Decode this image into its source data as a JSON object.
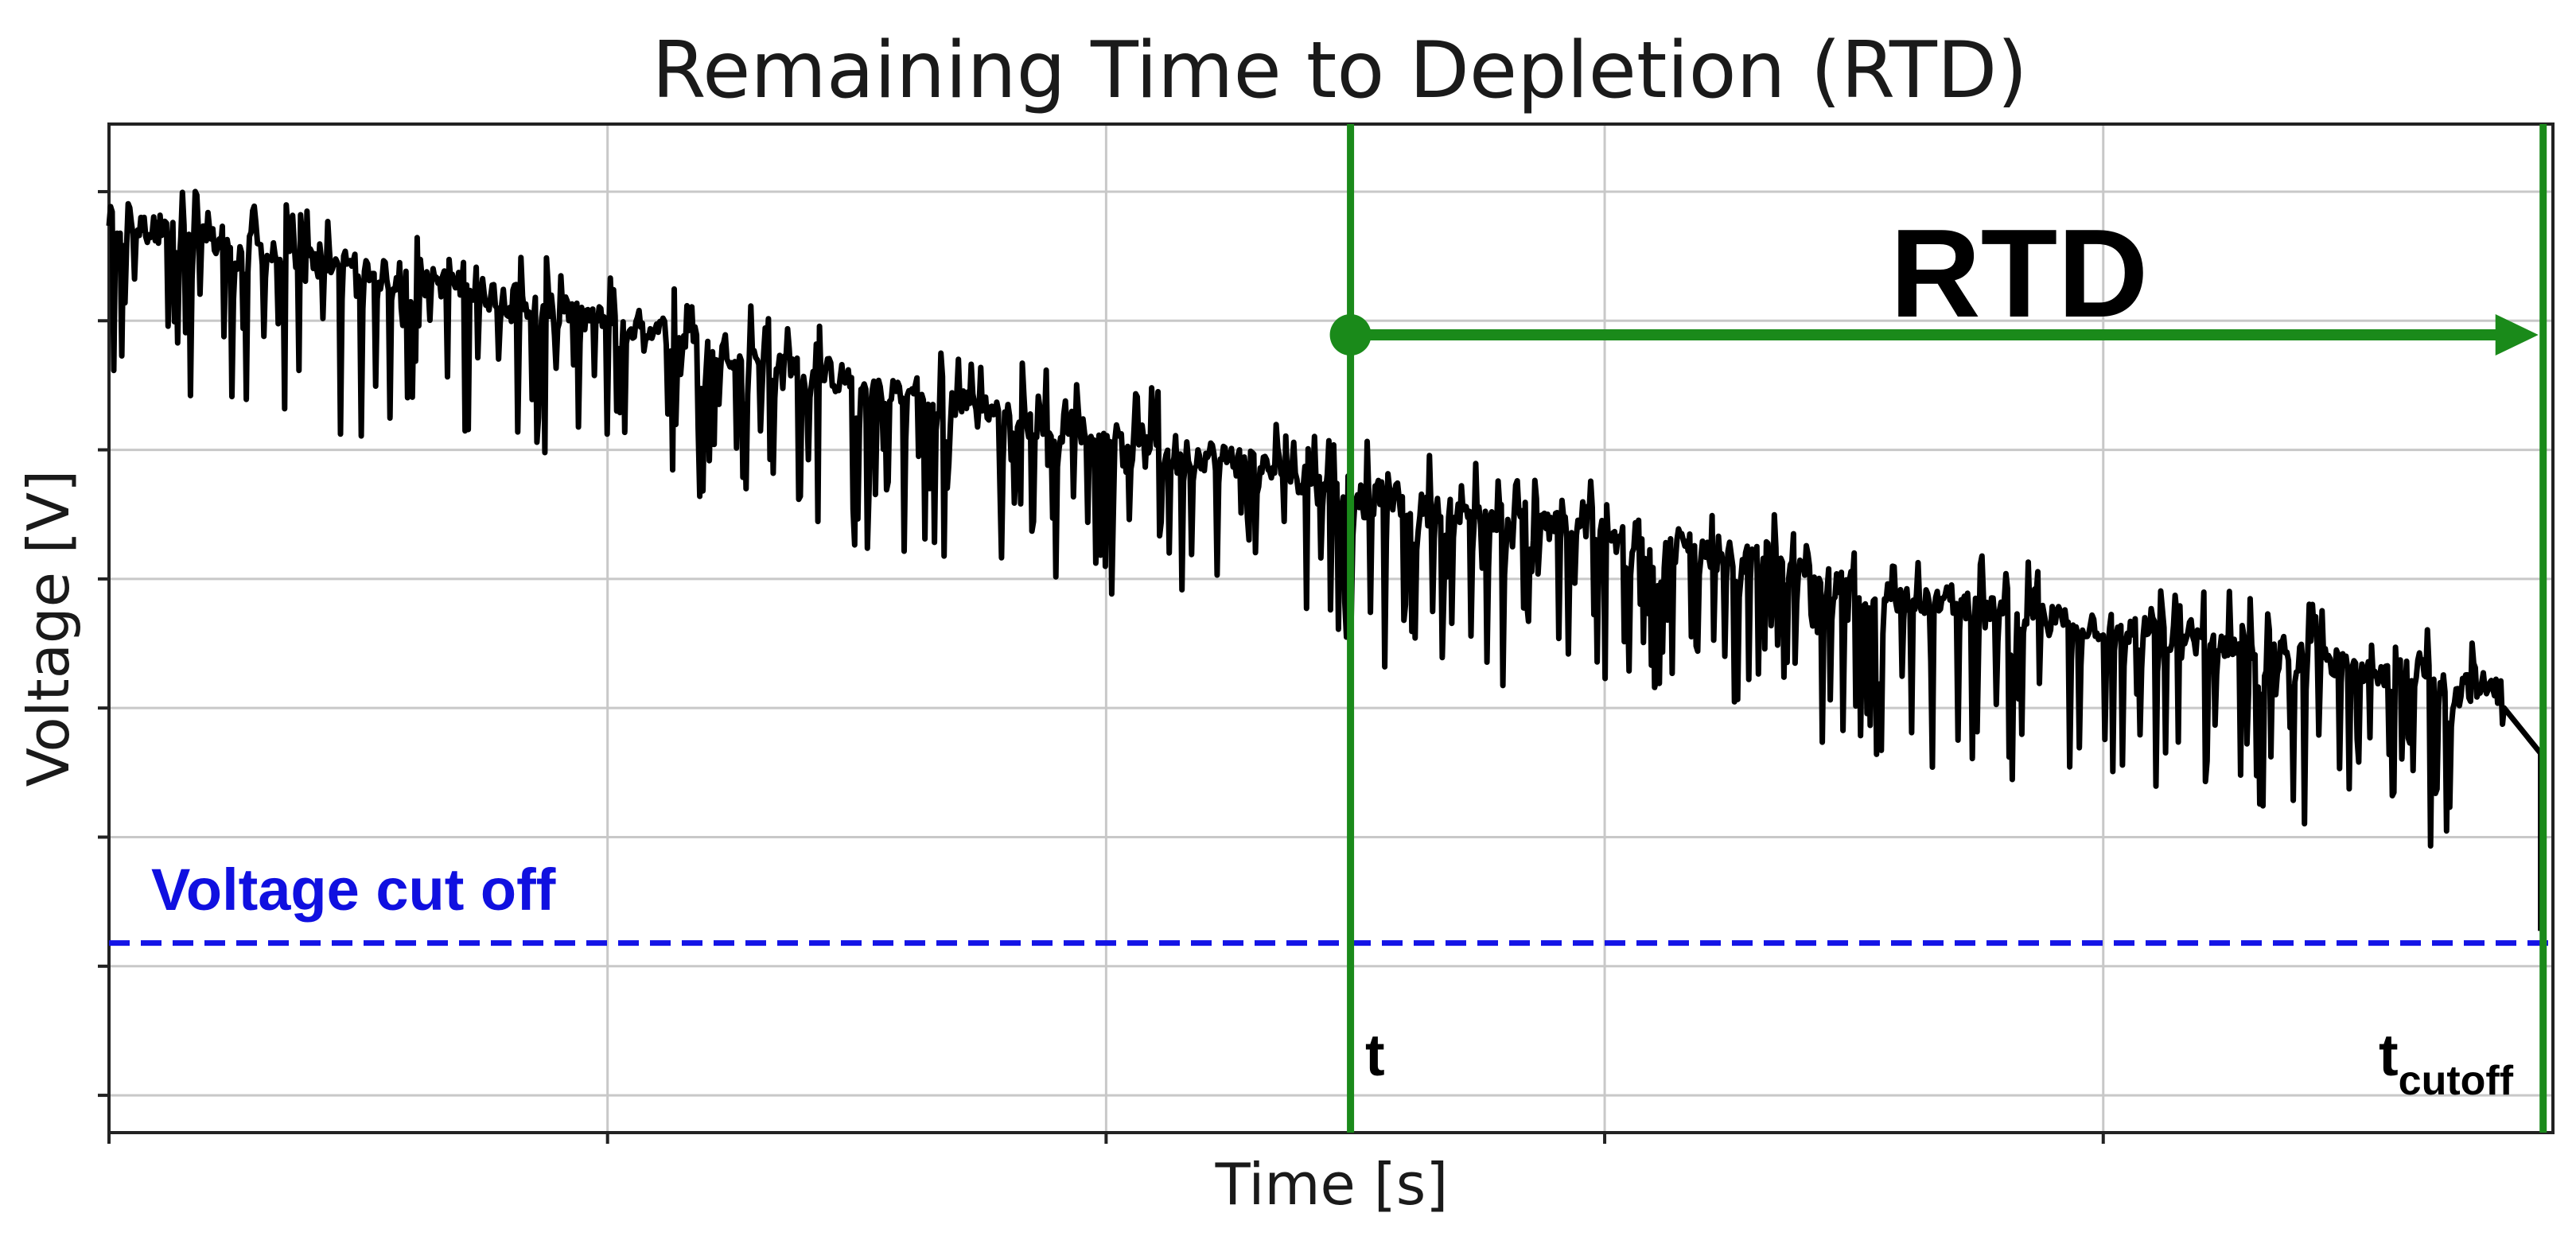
{
  "chart_data": {
    "type": "line",
    "title": "Remaining Time to Depletion (RTD)",
    "xlabel": "Time [s]",
    "ylabel": "Voltage [V]",
    "xlim": [
      0,
      100
    ],
    "ylim": [
      0,
      100
    ],
    "grid": true,
    "x_ticks": [
      0,
      20.4,
      40.8,
      61.2,
      81.6
    ],
    "y_ticks": [
      3.7,
      16.5,
      29.3,
      42.1,
      54.9,
      67.7,
      80.5,
      93.3
    ],
    "tick_labels_visible": false,
    "series": [
      {
        "color": "#000000",
        "x": [
          0,
          2,
          4,
          6,
          8,
          10,
          12,
          14,
          16,
          18,
          20,
          22,
          24,
          26,
          28,
          30,
          32,
          34,
          36,
          38,
          40,
          42,
          44,
          46,
          48,
          50,
          52,
          54,
          56,
          58,
          60,
          62,
          64,
          66,
          68,
          70,
          72,
          74,
          76,
          78,
          80,
          82,
          84,
          86,
          88,
          90,
          92,
          94,
          96,
          98,
          99.5
        ],
        "y": [
          90.5,
          89.5,
          88.4,
          87.4,
          86.5,
          85.7,
          84.8,
          84.0,
          83.0,
          81.8,
          80.8,
          79.7,
          78.6,
          77.3,
          76.0,
          74.8,
          73.8,
          72.8,
          71.8,
          70.8,
          69.8,
          68.8,
          67.8,
          66.6,
          65.4,
          64.2,
          63.0,
          62.0,
          61.2,
          60.6,
          60.0,
          59.5,
          58.8,
          57.7,
          56.3,
          54.9,
          53.8,
          52.9,
          52.2,
          51.5,
          50.8,
          50.2,
          49.5,
          48.8,
          48.0,
          47.2,
          46.5,
          45.7,
          44.6,
          43.6,
          20.0
        ],
        "noise_amplitude": 12
      }
    ],
    "reference_lines": {
      "cutoff_y": 18.8,
      "t_x": 50.8,
      "t_cutoff_x": 99.6
    },
    "annotations": {
      "rtd_label": "RTD",
      "t_label": "t",
      "t_cutoff_label": "t",
      "t_cutoff_subscript": "cutoff",
      "cutoff_label": "Voltage cut off"
    },
    "colors": {
      "cutoff_line": "#1414e6",
      "marker_lines": "#1a8a1a",
      "signal": "#000000"
    }
  }
}
